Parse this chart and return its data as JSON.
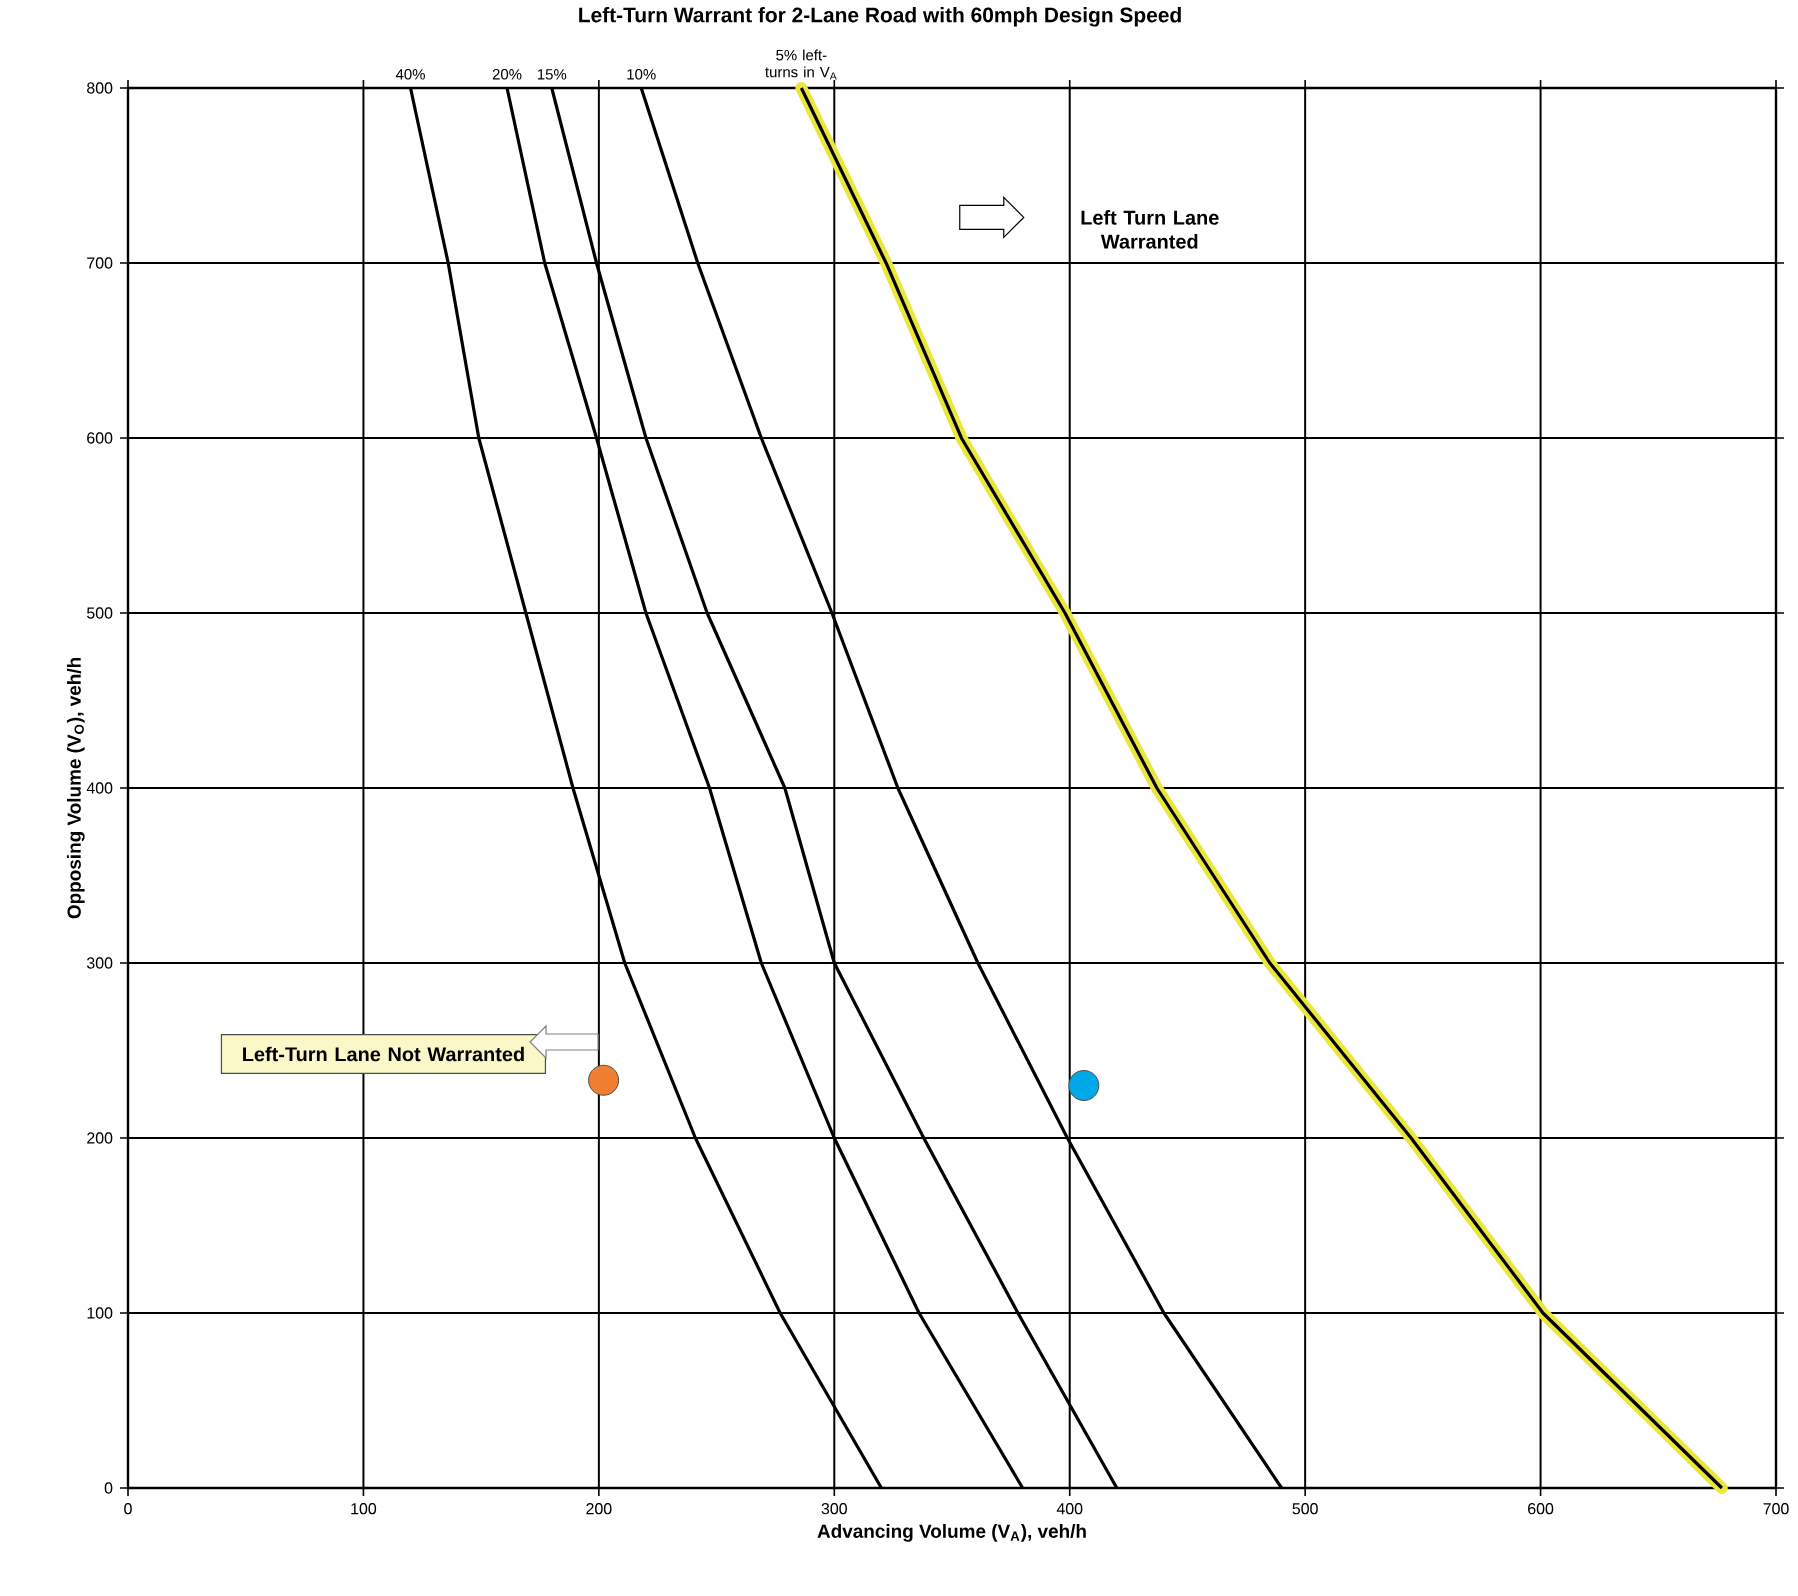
{
  "chart_data": {
    "type": "line",
    "title": "Left-Turn Warrant for 2-Lane Road with 60mph Design Speed",
    "xlabel": "Advancing Volume (V$_{A}$), veh/h",
    "ylabel": "Opposing Volume (V$_{O}$), veh/h",
    "xlim": [
      0,
      700
    ],
    "ylim": [
      0,
      800
    ],
    "xticks": [
      0,
      100,
      200,
      300,
      400,
      500,
      600,
      700
    ],
    "yticks": [
      0,
      100,
      200,
      300,
      400,
      500,
      600,
      700,
      800
    ],
    "grid": true,
    "marker": "circle",
    "line_style": "solid",
    "legend": "top",
    "series": [
      {
        "name": "40%",
        "color": "#000000",
        "marker": "none",
        "x": [
          120,
          136,
          149,
          169,
          189,
          211,
          241,
          277,
          320
        ],
        "values": [
          800,
          700,
          600,
          500,
          400,
          300,
          200,
          100,
          0
        ]
      },
      {
        "name": "20%",
        "color": "#000000",
        "marker": "none",
        "x": [
          161,
          177,
          199,
          220,
          247,
          269,
          300,
          336,
          380
        ],
        "values": [
          800,
          700,
          600,
          500,
          400,
          300,
          200,
          100,
          0
        ]
      },
      {
        "name": "15%",
        "color": "#000000",
        "marker": "none",
        "x": [
          180,
          199,
          220,
          246,
          279,
          300,
          338,
          378,
          420
        ],
        "values": [
          800,
          700,
          600,
          500,
          400,
          300,
          200,
          100,
          0
        ]
      },
      {
        "name": "10%",
        "color": "#000000",
        "marker": "none",
        "x": [
          218,
          242,
          269,
          299,
          327,
          361,
          399,
          440,
          490
        ],
        "values": [
          800,
          700,
          600,
          500,
          400,
          300,
          200,
          100,
          0
        ]
      },
      {
        "name": "5% left-turns in V$_{A}$",
        "color": "#000000",
        "marker": "none",
        "x": [
          286,
          322,
          354,
          398,
          437,
          485,
          545,
          601,
          677
        ],
        "values": [
          800,
          700,
          600,
          500,
          400,
          300,
          200,
          100,
          0
        ]
      },
      {
        "type": "scatter",
        "color": "#f07f32",
        "x": [
          202
        ],
        "values": [
          233
        ]
      },
      {
        "type": "scatter",
        "color": "#00a8e8",
        "x": [
          406
        ],
        "values": [
          230
        ]
      }
    ],
    "annotations": [
      "Left Turn Lane Warranted",
      "Left-Turn Lane Not Warranted"
    ]
  }
}
